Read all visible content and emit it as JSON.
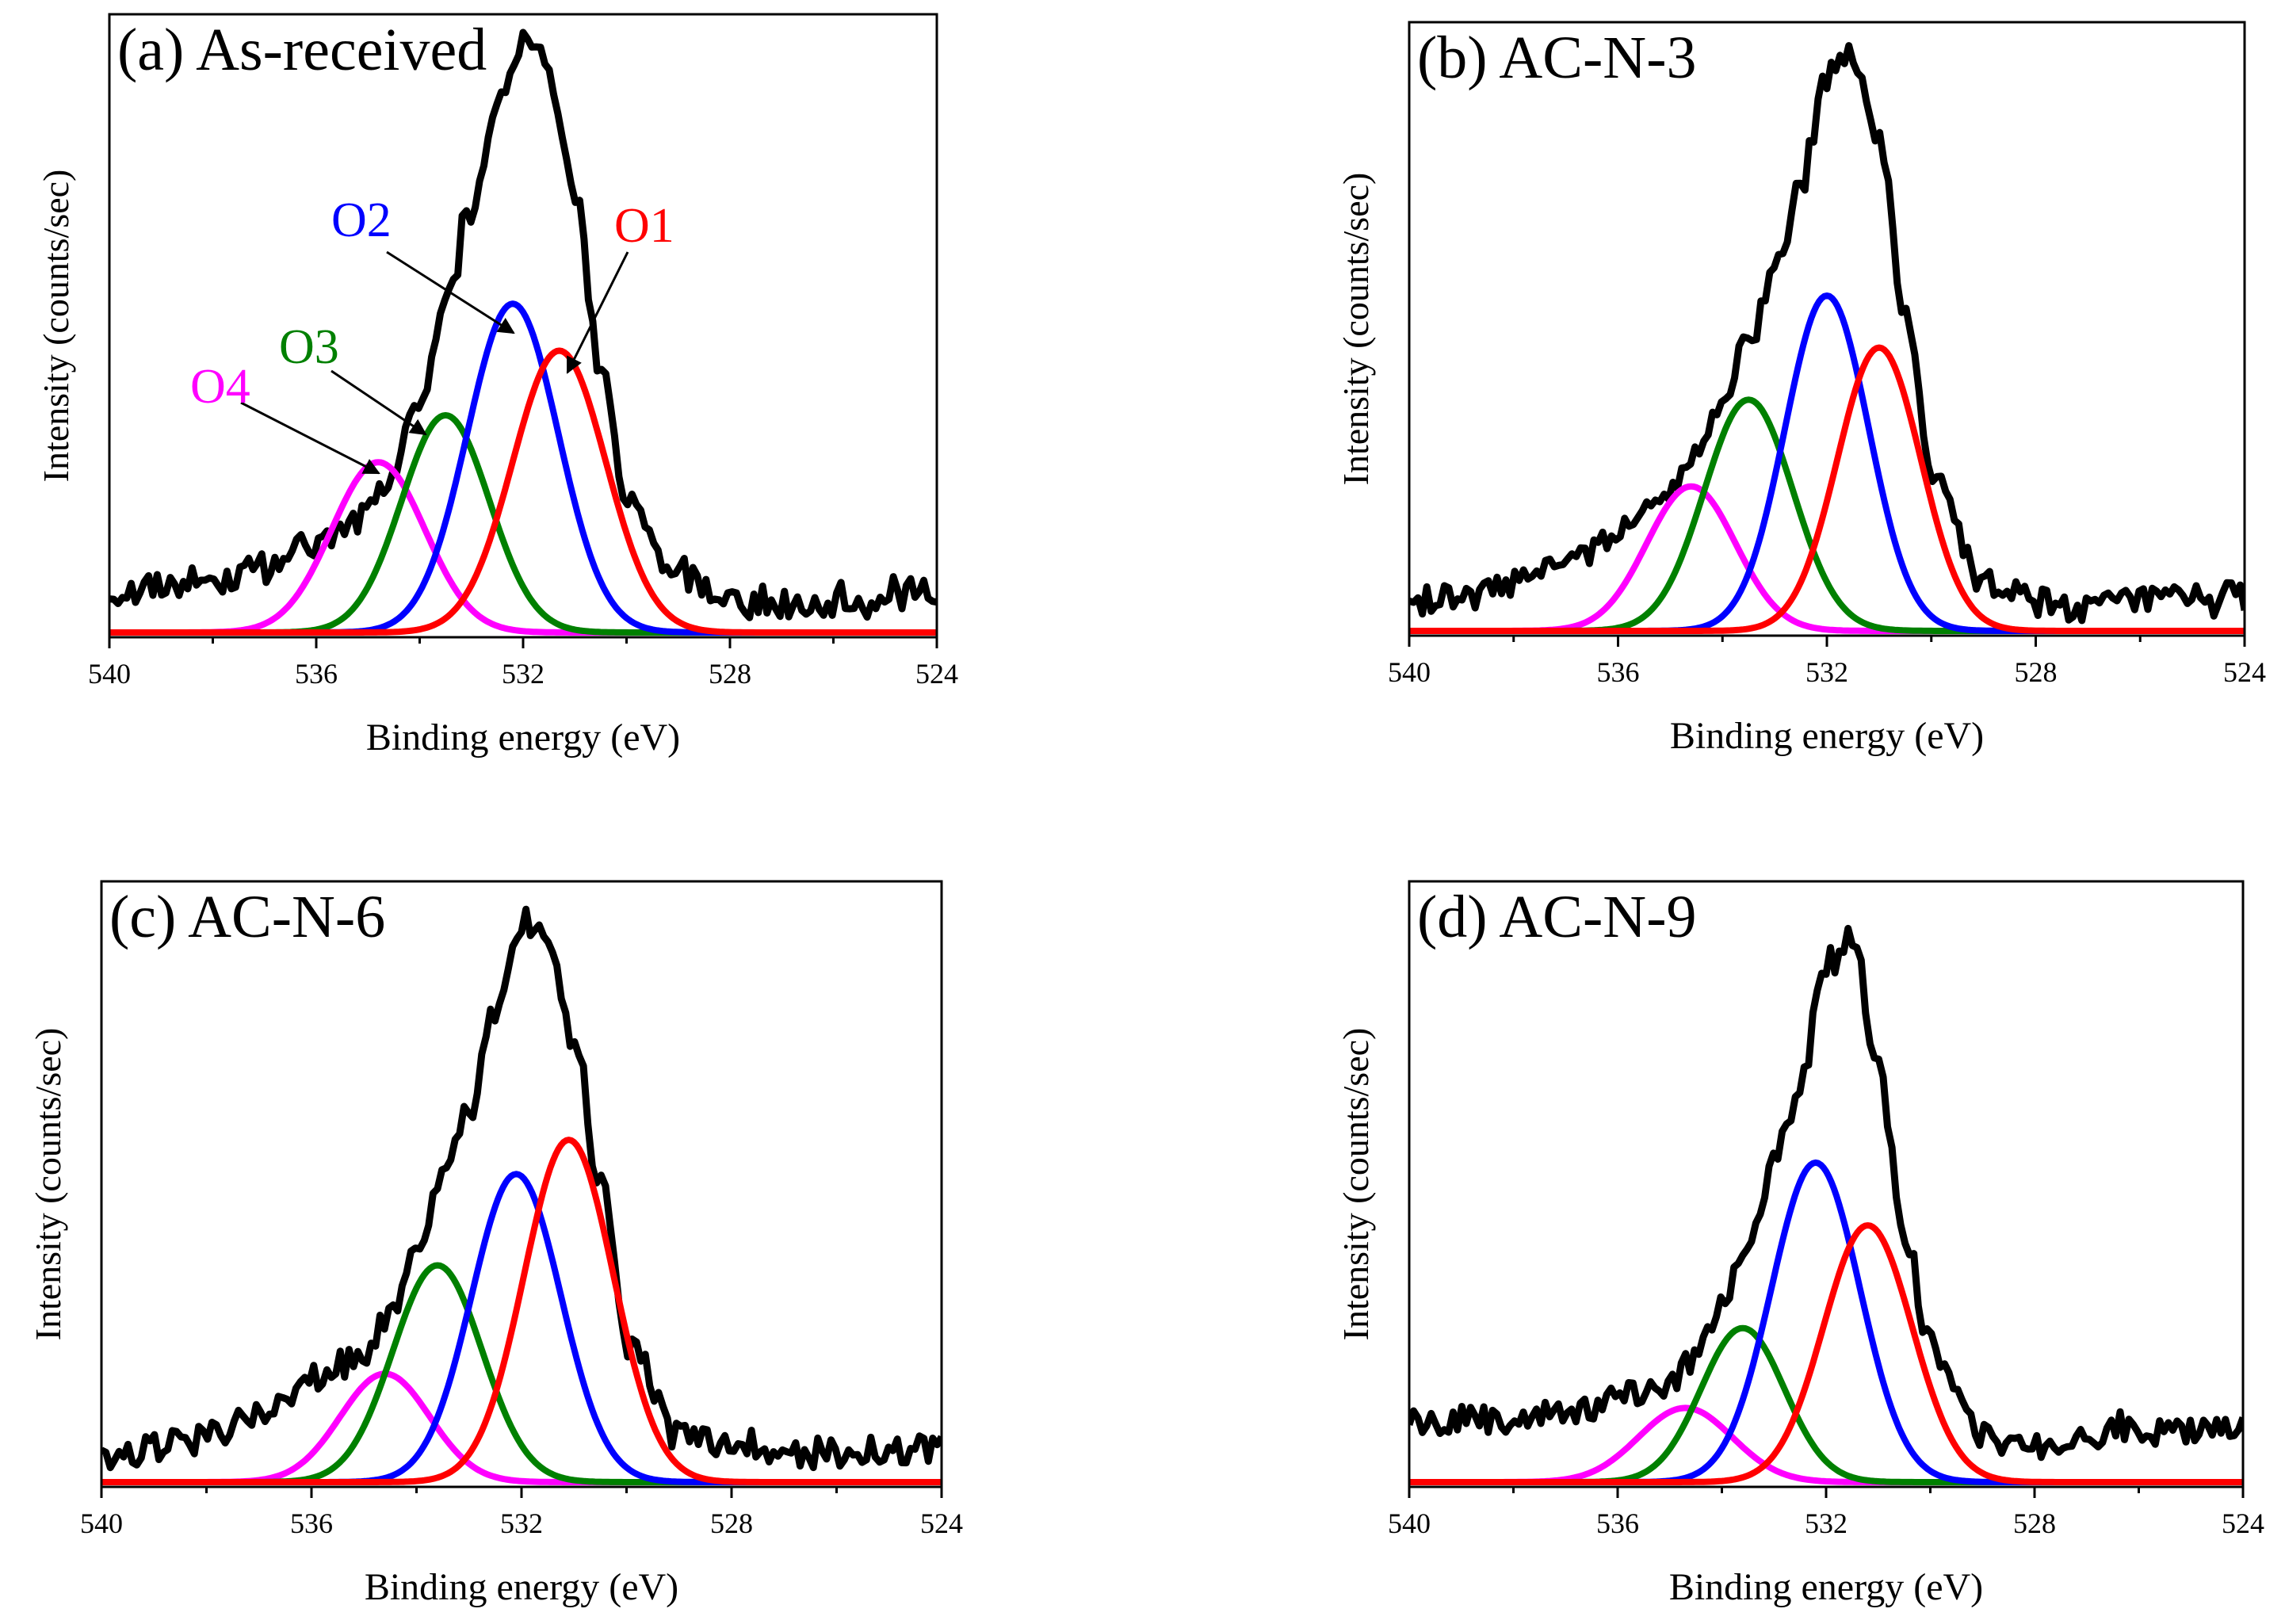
{
  "chart_data": [
    {
      "type": "line",
      "panel_label": "(a) As-received",
      "xlabel": "Binding energy (eV)",
      "ylabel": "Intensity (counts/sec)",
      "xlim": [
        540,
        524
      ],
      "x_reversed": true,
      "xticks": [
        540,
        536,
        532,
        528,
        524
      ],
      "yticks_shown": false,
      "grid": false,
      "legend": "none",
      "series": [
        {
          "name": "O1",
          "color": "#ff0000",
          "peak": {
            "center": 531.3,
            "height": 0.48,
            "sigma": 0.9
          }
        },
        {
          "name": "O2",
          "color": "#0000ff",
          "peak": {
            "center": 532.2,
            "height": 0.56,
            "sigma": 0.88
          }
        },
        {
          "name": "O3",
          "color": "#008000",
          "peak": {
            "center": 533.5,
            "height": 0.37,
            "sigma": 0.85
          }
        },
        {
          "name": "O4",
          "color": "#ff00ff",
          "peak": {
            "center": 534.8,
            "height": 0.29,
            "sigma": 0.9
          }
        }
      ],
      "raw": {
        "color": "#000000",
        "x": [
          540.0,
          538.0,
          537.0,
          536.0,
          535.0,
          534.5,
          534.0,
          533.5,
          533.0,
          532.5,
          532.0,
          531.5,
          531.0,
          530.5,
          530.0,
          529.0,
          528.0,
          527.0,
          526.0,
          524.0
        ],
        "y": [
          0.07,
          0.09,
          0.11,
          0.15,
          0.2,
          0.28,
          0.4,
          0.55,
          0.72,
          0.9,
          1.0,
          0.95,
          0.75,
          0.45,
          0.22,
          0.1,
          0.06,
          0.05,
          0.05,
          0.07
        ]
      },
      "annotations": [
        {
          "text": "O1",
          "color": "#ff0000",
          "target_x": 531.5
        },
        {
          "text": "O2",
          "color": "#0000ff",
          "target_x": 532.3
        },
        {
          "text": "O3",
          "color": "#008000",
          "target_x": 533.4
        },
        {
          "text": "O4",
          "color": "#ff00ff",
          "target_x": 534.7
        }
      ]
    },
    {
      "type": "line",
      "panel_label": "(b) AC-N-3",
      "xlabel": "Binding energy (eV)",
      "ylabel": "Intensity (counts/sec)",
      "xlim": [
        540,
        524
      ],
      "x_reversed": true,
      "xticks": [
        540,
        536,
        532,
        528,
        524
      ],
      "yticks_shown": false,
      "grid": false,
      "legend": "none",
      "series": [
        {
          "name": "O1",
          "color": "#ff0000",
          "peak": {
            "center": 531.0,
            "height": 0.49,
            "sigma": 0.8
          }
        },
        {
          "name": "O2",
          "color": "#0000ff",
          "peak": {
            "center": 532.0,
            "height": 0.58,
            "sigma": 0.8
          }
        },
        {
          "name": "O3",
          "color": "#008000",
          "peak": {
            "center": 533.5,
            "height": 0.4,
            "sigma": 0.85
          }
        },
        {
          "name": "O4",
          "color": "#ff00ff",
          "peak": {
            "center": 534.6,
            "height": 0.25,
            "sigma": 0.85
          }
        }
      ],
      "raw": {
        "color": "#000000",
        "x": [
          540.0,
          538.0,
          537.0,
          536.0,
          535.0,
          534.5,
          534.0,
          533.5,
          533.0,
          532.5,
          532.0,
          531.5,
          531.0,
          530.5,
          530.0,
          529.0,
          528.0,
          527.0,
          526.0,
          524.0
        ],
        "y": [
          0.05,
          0.08,
          0.12,
          0.17,
          0.25,
          0.32,
          0.4,
          0.5,
          0.62,
          0.78,
          0.96,
          1.0,
          0.85,
          0.55,
          0.27,
          0.08,
          0.05,
          0.04,
          0.05,
          0.06
        ]
      },
      "annotations": []
    },
    {
      "type": "line",
      "panel_label": "(c) AC-N-6",
      "xlabel": "Binding energy (eV)",
      "ylabel": "Intensity (counts/sec)",
      "xlim": [
        540,
        524
      ],
      "x_reversed": true,
      "xticks": [
        540,
        536,
        532,
        528,
        524
      ],
      "yticks_shown": false,
      "grid": false,
      "legend": "none",
      "series": [
        {
          "name": "O1",
          "color": "#ff0000",
          "peak": {
            "center": 531.1,
            "height": 0.6,
            "sigma": 0.85
          }
        },
        {
          "name": "O2",
          "color": "#0000ff",
          "peak": {
            "center": 532.1,
            "height": 0.54,
            "sigma": 0.85
          }
        },
        {
          "name": "O3",
          "color": "#008000",
          "peak": {
            "center": 533.6,
            "height": 0.38,
            "sigma": 0.85
          }
        },
        {
          "name": "O4",
          "color": "#ff00ff",
          "peak": {
            "center": 534.6,
            "height": 0.19,
            "sigma": 0.85
          }
        }
      ],
      "raw": {
        "color": "#000000",
        "x": [
          540.0,
          538.0,
          537.0,
          536.0,
          535.0,
          534.5,
          534.0,
          533.5,
          533.0,
          532.5,
          532.0,
          531.5,
          531.0,
          530.5,
          530.0,
          529.0,
          528.0,
          527.0,
          526.0,
          524.0
        ],
        "y": [
          0.04,
          0.08,
          0.12,
          0.18,
          0.22,
          0.3,
          0.4,
          0.55,
          0.66,
          0.82,
          0.98,
          0.94,
          0.78,
          0.52,
          0.24,
          0.08,
          0.06,
          0.05,
          0.05,
          0.06
        ]
      },
      "annotations": []
    },
    {
      "type": "line",
      "panel_label": "(d) AC-N-9",
      "xlabel": "Binding energy (eV)",
      "ylabel": "Intensity (counts/sec)",
      "xlim": [
        540,
        524
      ],
      "x_reversed": true,
      "xticks": [
        540,
        536,
        532,
        528,
        524
      ],
      "yticks_shown": false,
      "grid": false,
      "legend": "none",
      "series": [
        {
          "name": "O1",
          "color": "#ff0000",
          "peak": {
            "center": 531.2,
            "height": 0.45,
            "sigma": 0.85
          }
        },
        {
          "name": "O2",
          "color": "#0000ff",
          "peak": {
            "center": 532.2,
            "height": 0.56,
            "sigma": 0.85
          }
        },
        {
          "name": "O3",
          "color": "#008000",
          "peak": {
            "center": 533.6,
            "height": 0.27,
            "sigma": 0.8
          }
        },
        {
          "name": "O4",
          "color": "#ff00ff",
          "peak": {
            "center": 534.7,
            "height": 0.13,
            "sigma": 0.9
          }
        }
      ],
      "raw": {
        "color": "#000000",
        "x": [
          540.0,
          538.0,
          537.0,
          536.0,
          535.0,
          534.5,
          534.0,
          533.5,
          533.0,
          532.5,
          532.0,
          531.5,
          531.0,
          530.5,
          530.0,
          529.0,
          528.0,
          527.0,
          526.0,
          524.0
        ],
        "y": [
          0.1,
          0.11,
          0.12,
          0.15,
          0.17,
          0.22,
          0.3,
          0.42,
          0.56,
          0.7,
          0.9,
          0.96,
          0.72,
          0.44,
          0.24,
          0.08,
          0.07,
          0.08,
          0.09,
          0.1
        ]
      },
      "annotations": []
    }
  ]
}
